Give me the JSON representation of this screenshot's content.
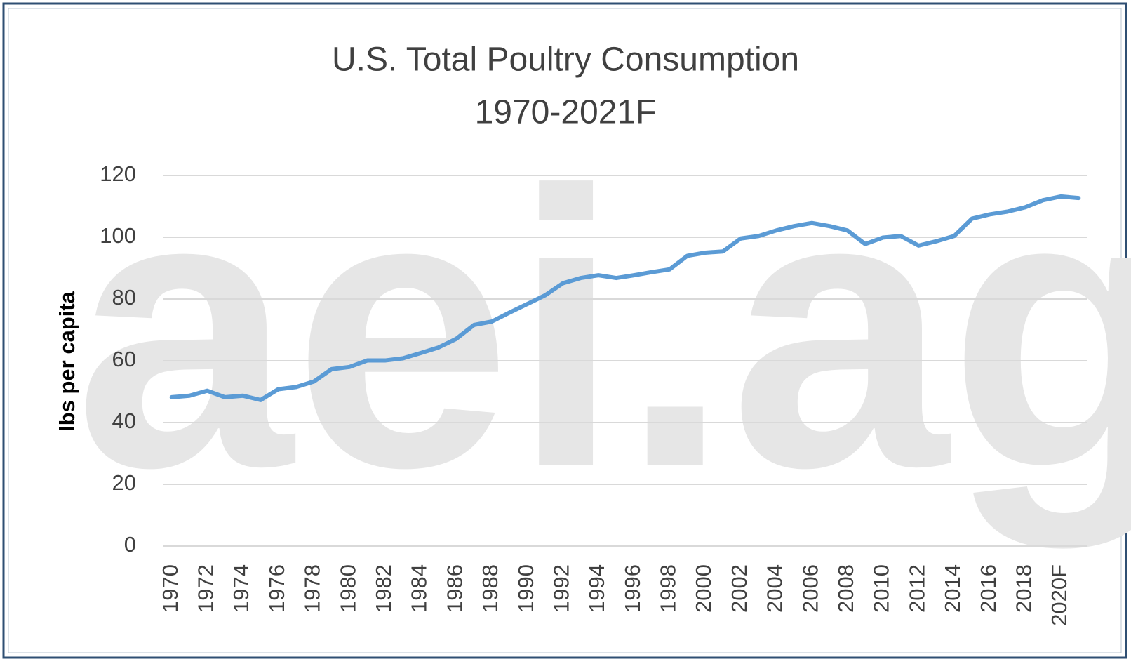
{
  "chart_data": {
    "type": "line",
    "title": "U.S. Total Poultry Consumption",
    "subtitle": "1970-2021F",
    "y_label": "lbs per capita",
    "watermark": "aei.ag",
    "categories": [
      "1970",
      null,
      "1972",
      null,
      "1974",
      null,
      "1976",
      null,
      "1978",
      null,
      "1980",
      null,
      "1982",
      null,
      "1984",
      null,
      "1986",
      null,
      "1988",
      null,
      "1990",
      null,
      "1992",
      null,
      "1994",
      null,
      "1996",
      null,
      "1998",
      null,
      "2000",
      null,
      "2002",
      null,
      "2004",
      null,
      "2006",
      null,
      "2008",
      null,
      "2010",
      null,
      "2012",
      null,
      "2014",
      null,
      "2016",
      null,
      "2018",
      null,
      "2020F",
      null
    ],
    "values": [
      48.2,
      48.7,
      50.3,
      48.2,
      48.7,
      47.3,
      50.8,
      51.5,
      53.3,
      57.3,
      58.0,
      60.1,
      60.1,
      60.8,
      62.5,
      64.3,
      67.1,
      71.6,
      72.7,
      75.6,
      78.4,
      81.2,
      85.1,
      86.8,
      87.7,
      86.8,
      87.7,
      88.7,
      89.6,
      94.0,
      95.0,
      95.4,
      99.6,
      100.4,
      102.2,
      103.6,
      104.6,
      103.6,
      102.2,
      97.8,
      99.9,
      100.4,
      97.3,
      98.7,
      100.4,
      106.0,
      107.4,
      108.3,
      109.7,
      112.0,
      113.2,
      112.7
    ],
    "color": "#5b9bd5",
    "ylim": [
      0,
      120
    ],
    "yticks": [
      0,
      20,
      40,
      60,
      80,
      100,
      120
    ],
    "grid": true
  }
}
